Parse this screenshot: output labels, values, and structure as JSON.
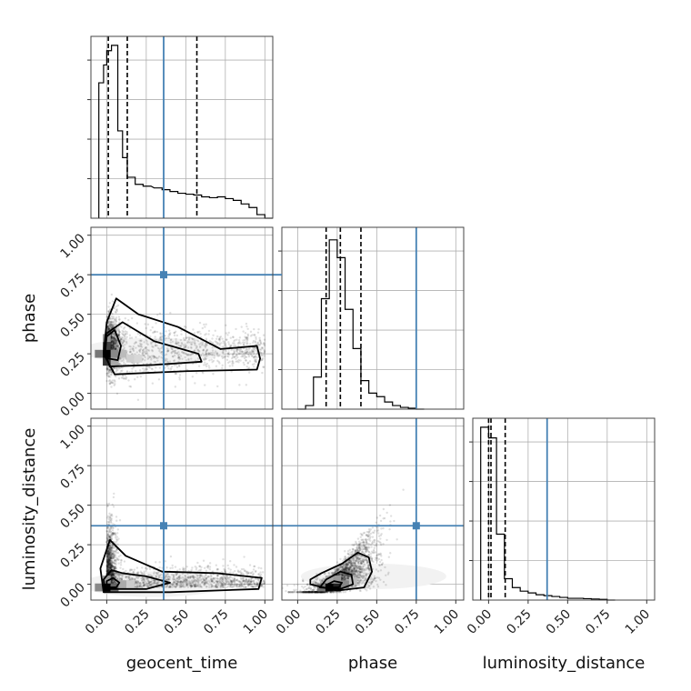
{
  "chart_data": {
    "type": "corner",
    "parameters": [
      "geocent_time",
      "phase",
      "luminosity_distance"
    ],
    "axis_range": [
      -0.1,
      1.05
    ],
    "tick_values": [
      0.0,
      0.25,
      0.5,
      0.75,
      1.0
    ],
    "tick_labels": [
      "0.00",
      "0.25",
      "0.50",
      "0.75",
      "1.00"
    ],
    "grid": true,
    "truths": {
      "geocent_time": 0.36,
      "phase": 0.75,
      "luminosity_distance": 0.37
    },
    "truth_color": "#4682b4",
    "quantiles": {
      "geocent_time": [
        0.01,
        0.13,
        0.57
      ],
      "phase": [
        0.18,
        0.27,
        0.4
      ],
      "luminosity_distance": [
        0.0,
        0.015,
        0.105
      ]
    },
    "histograms": {
      "geocent_time": {
        "bin_width": 0.05,
        "bin_starts": [
          -0.05,
          -0.02,
          0.0,
          0.03,
          0.07,
          0.1,
          0.13,
          0.18,
          0.23,
          0.3,
          0.35,
          0.4,
          0.45,
          0.5,
          0.55,
          0.6,
          0.65,
          0.7,
          0.75,
          0.8,
          0.85,
          0.9,
          0.95,
          1.0
        ],
        "heights": [
          0.76,
          0.86,
          0.94,
          0.97,
          0.49,
          0.34,
          0.23,
          0.19,
          0.18,
          0.17,
          0.16,
          0.15,
          0.14,
          0.135,
          0.13,
          0.12,
          0.115,
          0.12,
          0.11,
          0.1,
          0.08,
          0.06,
          0.02,
          0.0
        ]
      },
      "phase": {
        "bin_width": 0.05,
        "bin_starts": [
          0.0,
          0.05,
          0.1,
          0.15,
          0.2,
          0.25,
          0.3,
          0.35,
          0.4,
          0.45,
          0.5,
          0.55,
          0.6,
          0.65,
          0.7,
          0.75
        ],
        "heights": [
          0.0,
          0.02,
          0.18,
          0.62,
          0.95,
          0.85,
          0.56,
          0.34,
          0.16,
          0.09,
          0.07,
          0.04,
          0.02,
          0.01,
          0.005,
          0.0
        ]
      },
      "luminosity_distance": {
        "bin_width": 0.05,
        "bin_starts": [
          -0.05,
          0.0,
          0.05,
          0.1,
          0.15,
          0.2,
          0.25,
          0.3,
          0.35,
          0.4,
          0.45,
          0.5,
          0.55,
          0.6,
          0.65,
          0.7,
          0.75
        ],
        "heights": [
          0.97,
          0.91,
          0.37,
          0.12,
          0.07,
          0.05,
          0.04,
          0.03,
          0.025,
          0.02,
          0.015,
          0.01,
          0.01,
          0.008,
          0.006,
          0.004,
          0.0
        ]
      }
    }
  }
}
